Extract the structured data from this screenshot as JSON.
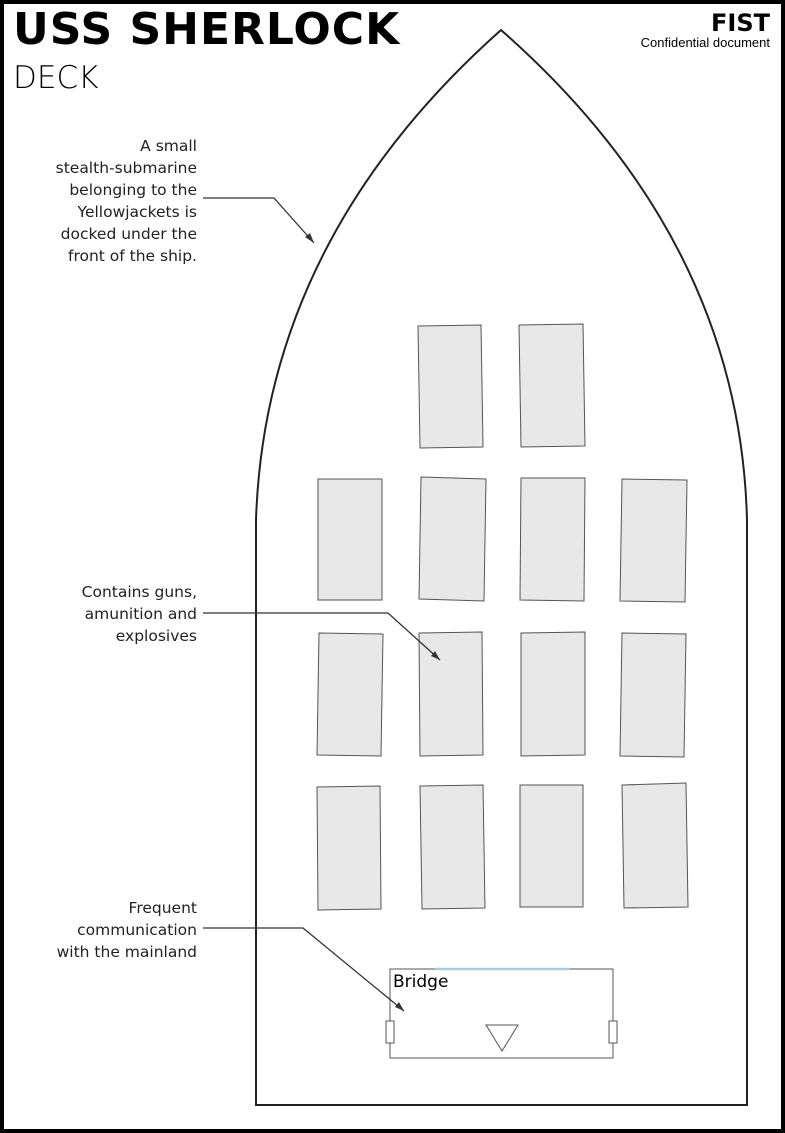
{
  "header": {
    "title": "USS SHERLOCK",
    "subtitle": "DECK",
    "brand": "FIST",
    "confidential": "Confidential document"
  },
  "annotations": [
    {
      "id": "submarine",
      "lines": [
        "A small",
        "stealth-submarine",
        "belonging to the",
        "Yellowjackets is",
        "docked under the",
        "front of the ship."
      ]
    },
    {
      "id": "cargo",
      "lines": [
        "Contains guns,",
        "amunition and",
        "explosives"
      ]
    },
    {
      "id": "comms",
      "lines": [
        "Frequent",
        "communication",
        "with the mainland"
      ]
    }
  ],
  "bridge": {
    "label": "Bridge"
  },
  "colors": {
    "crate_fill": "#e8e8e9",
    "crate_stroke": "#555555",
    "hull_stroke": "#222222",
    "antenna": "#a8cde0"
  }
}
